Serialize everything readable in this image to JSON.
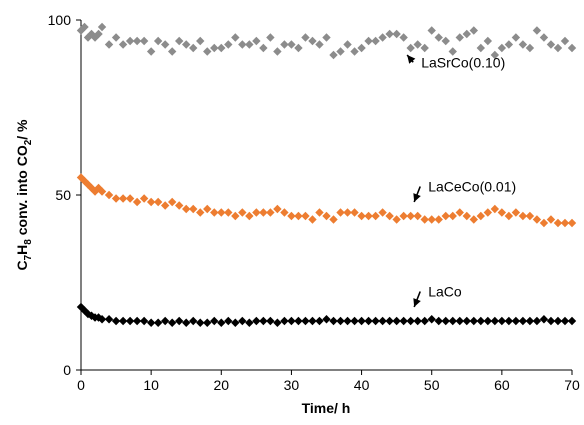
{
  "chart_data": {
    "type": "scatter",
    "xlabel": "Time/ h",
    "ylabel_parts": {
      "a": "C",
      "a_sub": "7",
      "b": "H",
      "b_sub": "8",
      "c": " conv. into CO",
      "c_sub": "2",
      "d": "/ %"
    },
    "xlim": [
      0,
      70
    ],
    "ylim": [
      0,
      100
    ],
    "xticks": [
      0,
      10,
      20,
      30,
      40,
      50,
      60,
      70
    ],
    "yticks": [
      0,
      50,
      100
    ],
    "grid": false,
    "legend": "none",
    "series": [
      {
        "name": "LaSrCo(0.10)",
        "color": "#8c8c8c",
        "marker": "diamond",
        "label_anchor": {
          "x": 48.5,
          "y": 86.5
        },
        "arrow_target": {
          "x": 46.5,
          "y": 90
        },
        "x": [
          0,
          0.5,
          1,
          1.5,
          2,
          2.5,
          3,
          4,
          5,
          6,
          7,
          8,
          9,
          10,
          11,
          12,
          13,
          14,
          15,
          16,
          17,
          18,
          19,
          20,
          21,
          22,
          23,
          24,
          25,
          26,
          27,
          28,
          29,
          30,
          31,
          32,
          33,
          34,
          35,
          36,
          37,
          38,
          39,
          40,
          41,
          42,
          43,
          44,
          45,
          46,
          47,
          48,
          49,
          50,
          51,
          52,
          53,
          54,
          55,
          56,
          57,
          58,
          59,
          60,
          61,
          62,
          63,
          64,
          65,
          66,
          67,
          68,
          69,
          70
        ],
        "y": [
          97,
          98,
          95,
          96,
          95,
          96,
          98,
          93,
          95,
          93,
          94,
          94,
          94,
          91,
          94,
          93,
          91,
          94,
          93,
          92,
          94,
          91,
          92,
          92,
          93,
          95,
          93,
          93,
          94,
          92,
          95,
          91,
          93,
          93,
          92,
          95,
          94,
          93,
          95,
          90,
          91,
          93,
          91,
          92,
          94,
          94,
          95,
          96,
          96,
          95,
          92,
          93,
          92,
          97,
          95,
          94,
          91,
          95,
          96,
          97,
          92,
          94,
          90,
          92,
          93,
          95,
          93,
          92,
          97,
          95,
          93,
          92,
          94,
          92
        ]
      },
      {
        "name": "LaCeCo(0.01)",
        "color": "#ed7d31",
        "marker": "diamond",
        "label_anchor": {
          "x": 49.5,
          "y": 51
        },
        "arrow_target": {
          "x": 47.5,
          "y": 48
        },
        "x": [
          0,
          0.5,
          1,
          1.5,
          2,
          2.5,
          3,
          4,
          5,
          6,
          7,
          8,
          9,
          10,
          11,
          12,
          13,
          14,
          15,
          16,
          17,
          18,
          19,
          20,
          21,
          22,
          23,
          24,
          25,
          26,
          27,
          28,
          29,
          30,
          31,
          32,
          33,
          34,
          35,
          36,
          37,
          38,
          39,
          40,
          41,
          42,
          43,
          44,
          45,
          46,
          47,
          48,
          49,
          50,
          51,
          52,
          53,
          54,
          55,
          56,
          57,
          58,
          59,
          60,
          61,
          62,
          63,
          64,
          65,
          66,
          67,
          68,
          69,
          70
        ],
        "y": [
          55,
          54,
          53,
          52,
          51,
          52,
          51,
          50,
          49,
          49,
          49,
          48,
          49,
          48,
          48,
          47,
          48,
          47,
          46,
          46,
          45,
          46,
          45,
          45,
          45,
          44,
          45,
          44,
          45,
          45,
          45,
          46,
          45,
          44,
          44,
          44,
          43,
          45,
          44,
          43,
          45,
          45,
          45,
          44,
          44,
          44,
          45,
          44,
          43,
          44,
          44,
          44,
          43,
          43,
          43,
          44,
          44,
          45,
          44,
          43,
          44,
          45,
          46,
          45,
          44,
          45,
          44,
          44,
          43,
          42,
          43,
          42,
          42,
          42
        ]
      },
      {
        "name": "LaCo",
        "color": "#000000",
        "marker": "diamond",
        "label_anchor": {
          "x": 49.5,
          "y": 21
        },
        "arrow_target": {
          "x": 47.5,
          "y": 18
        },
        "x": [
          0,
          0.5,
          1,
          1.5,
          2,
          2.5,
          3,
          4,
          5,
          6,
          7,
          8,
          9,
          10,
          11,
          12,
          13,
          14,
          15,
          16,
          17,
          18,
          19,
          20,
          21,
          22,
          23,
          24,
          25,
          26,
          27,
          28,
          29,
          30,
          31,
          32,
          33,
          34,
          35,
          36,
          37,
          38,
          39,
          40,
          41,
          42,
          43,
          44,
          45,
          46,
          47,
          48,
          49,
          50,
          51,
          52,
          53,
          54,
          55,
          56,
          57,
          58,
          59,
          60,
          61,
          62,
          63,
          64,
          65,
          66,
          67,
          68,
          69,
          70
        ],
        "y": [
          18,
          17,
          16,
          15.5,
          15,
          15,
          14.5,
          14.5,
          14,
          14,
          14,
          14,
          14,
          13.5,
          13.5,
          14,
          13.5,
          14,
          13.5,
          14,
          13.5,
          13.5,
          14,
          13.5,
          14,
          13.5,
          14,
          13.5,
          14,
          14,
          14,
          13.5,
          14,
          14,
          14,
          14,
          14,
          14,
          14.5,
          14,
          14,
          14,
          14,
          14,
          14,
          14,
          14,
          14,
          14,
          14,
          14,
          14,
          14,
          14.5,
          14,
          14,
          14,
          14,
          14,
          14,
          14,
          14,
          14,
          14,
          14,
          14,
          14,
          14,
          14,
          14.5,
          14,
          14,
          14,
          14
        ]
      }
    ]
  }
}
